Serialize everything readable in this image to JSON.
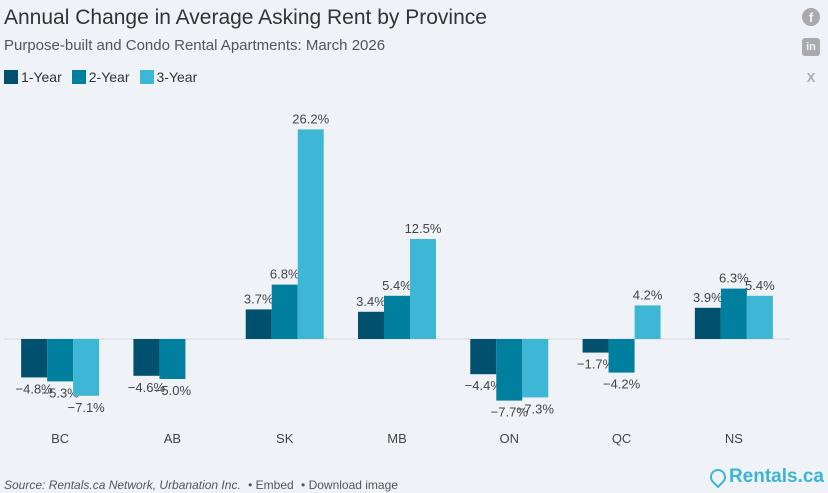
{
  "header": {
    "title": "Annual Change in Average Asking Rent by Province",
    "subtitle": "Purpose-built and Condo Rental Apartments: March 2026"
  },
  "social": {
    "facebook": "facebook-icon",
    "linkedin": "linkedin-icon",
    "x": "x-icon"
  },
  "colors": {
    "1-Year": "#00506e",
    "2-Year": "#00809e",
    "3-Year": "#3eb6d5"
  },
  "chart_data": {
    "type": "bar",
    "categories": [
      "BC",
      "AB",
      "SK",
      "MB",
      "ON",
      "QC",
      "NS"
    ],
    "series": [
      {
        "name": "1-Year",
        "values": [
          -4.8,
          -4.6,
          3.7,
          3.4,
          -4.4,
          -1.7,
          3.9
        ]
      },
      {
        "name": "2-Year",
        "values": [
          -5.3,
          -5.0,
          6.8,
          5.4,
          -7.7,
          -4.2,
          6.3
        ]
      },
      {
        "name": "3-Year",
        "values": [
          -7.1,
          null,
          26.2,
          12.5,
          -7.3,
          4.2,
          5.4
        ]
      }
    ],
    "value_format": "%",
    "legend": "top-left",
    "grid": false
  },
  "footer": {
    "source": "Source: Rentals.ca Network, Urbanation Inc.",
    "embed": "• Embed",
    "download": "• Download image",
    "brand": "Rentals.ca"
  }
}
